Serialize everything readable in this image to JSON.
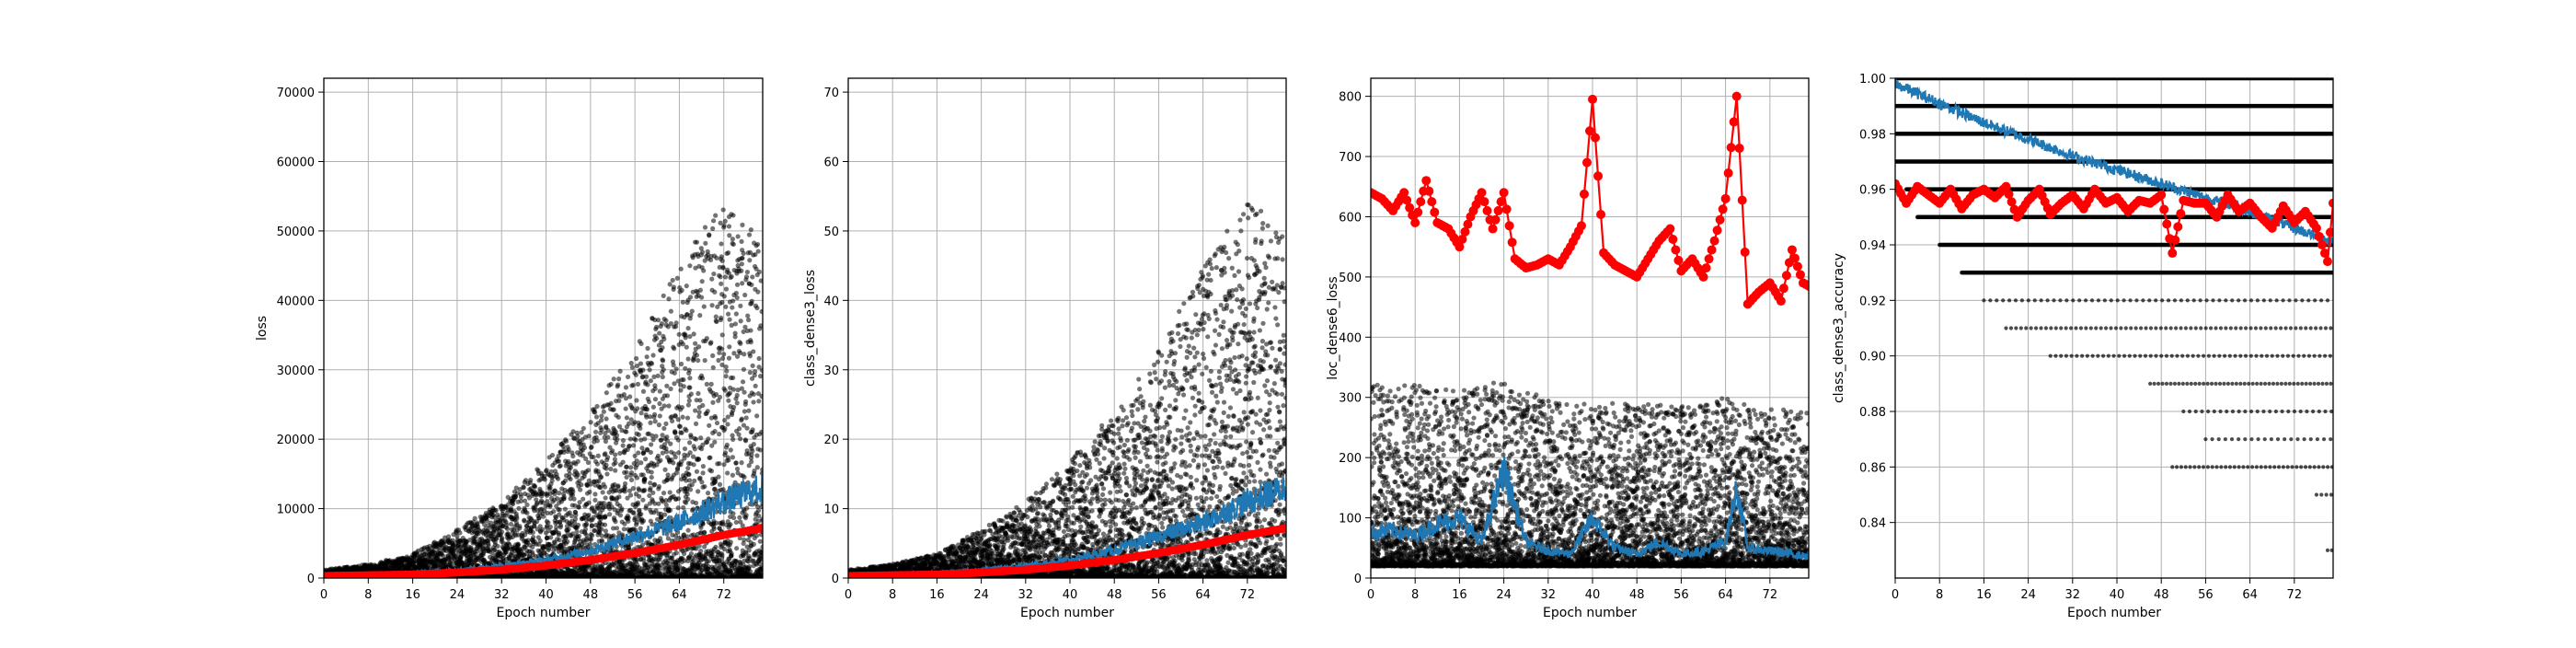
{
  "colors": {
    "train_points": "#000000",
    "train_line": "#1f77b4",
    "val_line": "#ff0000",
    "grid": "#b0b0b0",
    "background": "#ffffff"
  },
  "chart_data": [
    {
      "type": "scatter",
      "xlabel": "Epoch number",
      "ylabel": "loss",
      "xlim": [
        0,
        79
      ],
      "ylim": [
        0,
        72000
      ],
      "xticks": [
        0,
        8,
        16,
        24,
        32,
        40,
        48,
        56,
        64,
        72
      ],
      "yticks": [
        0,
        10000,
        20000,
        30000,
        40000,
        50000,
        60000,
        70000
      ],
      "grid": true,
      "series": [
        {
          "kind": "points",
          "color": "#000000",
          "description": "per-batch values, spread widening with epoch",
          "x": [
            0,
            8,
            16,
            24,
            32,
            40,
            48,
            56,
            64,
            72,
            79
          ],
          "y_low": [
            0,
            0,
            0,
            0,
            0,
            0,
            0,
            0,
            0,
            0,
            0
          ],
          "y_high": [
            1200,
            2000,
            3500,
            7000,
            11000,
            17000,
            24000,
            33000,
            45000,
            55000,
            49000
          ]
        },
        {
          "kind": "line",
          "color": "#1f77b4",
          "x": [
            0,
            8,
            16,
            24,
            32,
            40,
            48,
            56,
            64,
            72,
            79
          ],
          "y": [
            500,
            600,
            800,
            1200,
            1800,
            2600,
            4000,
            6000,
            8000,
            11000,
            13000
          ]
        },
        {
          "kind": "line_markers",
          "color": "#ff0000",
          "x": [
            0,
            8,
            16,
            24,
            32,
            40,
            48,
            56,
            64,
            72,
            79
          ],
          "y": [
            300,
            400,
            500,
            800,
            1200,
            1800,
            2600,
            3600,
            4800,
            6200,
            7200
          ]
        }
      ]
    },
    {
      "type": "scatter",
      "xlabel": "Epoch number",
      "ylabel": "class_dense3_loss",
      "xlim": [
        0,
        79
      ],
      "ylim": [
        0,
        72
      ],
      "xticks": [
        0,
        8,
        16,
        24,
        32,
        40,
        48,
        56,
        64,
        72
      ],
      "yticks": [
        0,
        10,
        20,
        30,
        40,
        50,
        60,
        70
      ],
      "grid": true,
      "series": [
        {
          "kind": "points",
          "color": "#000000",
          "x": [
            0,
            8,
            16,
            24,
            32,
            40,
            48,
            56,
            64,
            72,
            79
          ],
          "y_low": [
            0,
            0,
            0,
            0,
            0,
            0,
            0,
            0,
            0,
            0,
            0
          ],
          "y_high": [
            1.2,
            2,
            3.5,
            7,
            11,
            17,
            24,
            33,
            45,
            55,
            49
          ]
        },
        {
          "kind": "line",
          "color": "#1f77b4",
          "x": [
            0,
            8,
            16,
            24,
            32,
            40,
            48,
            56,
            64,
            72,
            79
          ],
          "y": [
            0.5,
            0.6,
            0.8,
            1.2,
            1.8,
            2.6,
            4,
            6,
            8,
            11,
            13
          ]
        },
        {
          "kind": "line_markers",
          "color": "#ff0000",
          "x": [
            0,
            8,
            16,
            24,
            32,
            40,
            48,
            56,
            64,
            72,
            79
          ],
          "y": [
            0.3,
            0.4,
            0.5,
            0.8,
            1.2,
            1.8,
            2.6,
            3.6,
            4.8,
            6.2,
            7.2
          ]
        }
      ]
    },
    {
      "type": "scatter",
      "xlabel": "Epoch number",
      "ylabel": "loc_dense6_loss",
      "xlim": [
        0,
        79
      ],
      "ylim": [
        0,
        830
      ],
      "xticks": [
        0,
        8,
        16,
        24,
        32,
        40,
        48,
        56,
        64,
        72
      ],
      "yticks": [
        0,
        100,
        200,
        300,
        400,
        500,
        600,
        700,
        800
      ],
      "grid": true,
      "series": [
        {
          "kind": "points",
          "color": "#000000",
          "x": [
            0,
            8,
            16,
            24,
            32,
            40,
            48,
            56,
            64,
            72,
            79
          ],
          "y_low": [
            20,
            20,
            20,
            20,
            20,
            20,
            20,
            20,
            20,
            20,
            20
          ],
          "y_high": [
            330,
            320,
            310,
            330,
            300,
            290,
            290,
            285,
            300,
            280,
            280
          ]
        },
        {
          "kind": "line",
          "color": "#1f77b4",
          "x": [
            0,
            4,
            8,
            12,
            16,
            20,
            24,
            28,
            32,
            36,
            40,
            44,
            48,
            52,
            56,
            60,
            64,
            66,
            68,
            72,
            76,
            79
          ],
          "y": [
            75,
            80,
            70,
            90,
            100,
            60,
            180,
            60,
            45,
            40,
            100,
            50,
            40,
            60,
            40,
            45,
            60,
            150,
            50,
            45,
            40,
            35
          ]
        },
        {
          "kind": "line_markers",
          "color": "#ff0000",
          "x": [
            0,
            2,
            4,
            6,
            8,
            10,
            12,
            14,
            16,
            18,
            20,
            22,
            24,
            26,
            28,
            30,
            32,
            34,
            36,
            38,
            40,
            42,
            44,
            46,
            48,
            50,
            52,
            54,
            56,
            58,
            60,
            62,
            64,
            66,
            68,
            70,
            72,
            74,
            76,
            78,
            79
          ],
          "y": [
            640,
            630,
            610,
            640,
            590,
            660,
            590,
            580,
            550,
            600,
            640,
            580,
            640,
            530,
            515,
            520,
            530,
            520,
            550,
            585,
            795,
            540,
            520,
            510,
            500,
            530,
            560,
            580,
            510,
            530,
            500,
            560,
            630,
            800,
            455,
            475,
            490,
            460,
            545,
            490,
            485
          ]
        }
      ]
    },
    {
      "type": "scatter",
      "xlabel": "Epoch number",
      "ylabel": "class_dense3_accuracy",
      "xlim": [
        0,
        79
      ],
      "ylim": [
        0.82,
        1.0
      ],
      "xticks": [
        0,
        8,
        16,
        24,
        32,
        40,
        48,
        56,
        64,
        72
      ],
      "yticks": [
        0.84,
        0.86,
        0.88,
        0.9,
        0.92,
        0.94,
        0.96,
        0.98,
        1.0
      ],
      "grid": true,
      "series": [
        {
          "kind": "points_quantized",
          "color": "#000000",
          "levels": [
            0.83,
            0.85,
            0.86,
            0.87,
            0.88,
            0.89,
            0.9,
            0.91,
            0.92,
            0.93,
            0.94,
            0.95,
            0.96,
            0.97,
            0.98,
            0.99,
            1.0
          ],
          "level_start_epoch": [
            78,
            76,
            50,
            56,
            52,
            46,
            28,
            20,
            16,
            12,
            8,
            4,
            2,
            0,
            0,
            0,
            0
          ]
        },
        {
          "kind": "line",
          "color": "#1f77b4",
          "x": [
            0,
            8,
            16,
            24,
            32,
            40,
            48,
            56,
            64,
            72,
            79
          ],
          "y": [
            0.998,
            0.991,
            0.984,
            0.978,
            0.972,
            0.967,
            0.962,
            0.957,
            0.952,
            0.946,
            0.941
          ]
        },
        {
          "kind": "line_markers",
          "color": "#ff0000",
          "x": [
            0,
            2,
            4,
            6,
            8,
            10,
            12,
            14,
            16,
            18,
            20,
            22,
            24,
            26,
            28,
            30,
            32,
            34,
            36,
            38,
            40,
            42,
            44,
            46,
            48,
            50,
            52,
            54,
            56,
            58,
            60,
            62,
            64,
            66,
            68,
            70,
            72,
            74,
            76,
            78,
            79
          ],
          "y": [
            0.962,
            0.955,
            0.961,
            0.958,
            0.955,
            0.96,
            0.953,
            0.958,
            0.96,
            0.957,
            0.961,
            0.95,
            0.956,
            0.96,
            0.951,
            0.955,
            0.958,
            0.953,
            0.96,
            0.955,
            0.957,
            0.952,
            0.956,
            0.955,
            0.958,
            0.937,
            0.956,
            0.955,
            0.955,
            0.95,
            0.958,
            0.952,
            0.955,
            0.95,
            0.946,
            0.954,
            0.948,
            0.952,
            0.946,
            0.934,
            0.955
          ]
        }
      ]
    }
  ]
}
